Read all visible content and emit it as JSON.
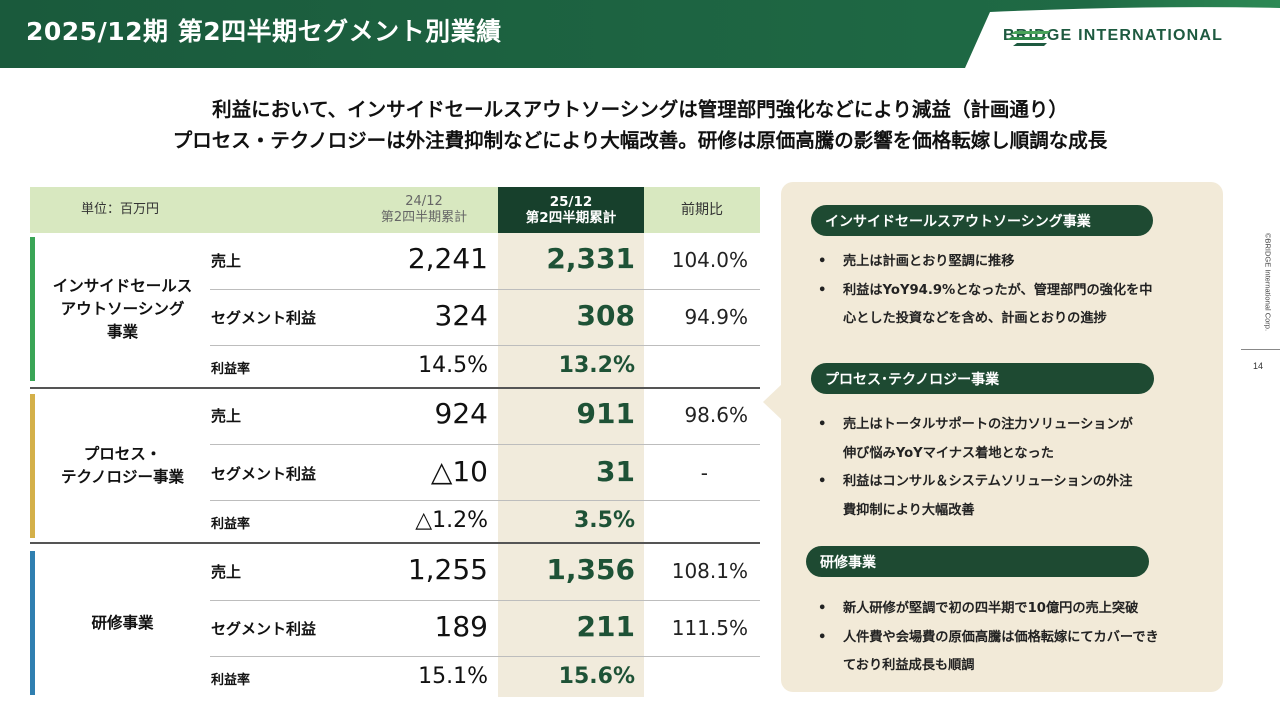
{
  "header": {
    "title": "2025/12期 第2四半期セグメント別業績",
    "logo_text": "BRIDGE INTERNATIONAL",
    "band_color": "#1b5a3e"
  },
  "headline": {
    "line1": "利益において、インサイドセールスアウトソーシングは管理部門強化などにより減益（計画通り）",
    "line2": "プロセス・テクノロジーは外注費抑制などにより大幅改善。研修は原価高騰の影響を価格転嫁し順調な成長"
  },
  "table": {
    "unit_label": "単位：百万円",
    "col_prev": {
      "line1": "24/12",
      "line2": "第2四半期累計"
    },
    "col_curr": {
      "line1": "25/12",
      "line2": "第2四半期累計"
    },
    "col_yoy": "前期比",
    "segments": [
      {
        "name_lines": [
          "インサイドセールス",
          "アウトソーシング",
          "事業"
        ],
        "color": "#3aa556",
        "rows": [
          {
            "label": "売上",
            "prev": "2,241",
            "curr": "2,331",
            "yoy": "104.0%"
          },
          {
            "label": "セグメント利益",
            "prev": "324",
            "curr": "308",
            "yoy": "94.9%"
          },
          {
            "label": "利益率",
            "prev": "14.5%",
            "curr": "13.2%",
            "yoy": ""
          }
        ]
      },
      {
        "name_lines": [
          "プロセス・",
          "テクノロジー事業"
        ],
        "color": "#d4b049",
        "rows": [
          {
            "label": "売上",
            "prev": "924",
            "curr": "911",
            "yoy": "98.6%"
          },
          {
            "label": "セグメント利益",
            "prev": "△10",
            "curr": "31",
            "yoy": "-"
          },
          {
            "label": "利益率",
            "prev": "△1.2%",
            "curr": "3.5%",
            "yoy": ""
          }
        ]
      },
      {
        "name_lines": [
          "研修事業"
        ],
        "color": "#2f7fb0",
        "rows": [
          {
            "label": "売上",
            "prev": "1,255",
            "curr": "1,356",
            "yoy": "108.1%"
          },
          {
            "label": "セグメント利益",
            "prev": "189",
            "curr": "211",
            "yoy": "111.5%"
          },
          {
            "label": "利益率",
            "prev": "15.1%",
            "curr": "15.6%",
            "yoy": ""
          }
        ]
      }
    ]
  },
  "panel": {
    "sections": [
      {
        "title": "インサイドセールスアウトソーシング事業",
        "bullets": [
          [
            "売上は計画とおり堅調に推移"
          ],
          [
            "利益はYoY94.9%となったが、管理部門の強化を中",
            "心とした投資などを含め、計画とおりの進捗"
          ]
        ]
      },
      {
        "title": "プロセス･テクノロジー事業",
        "bullets": [
          [
            "売上はトータルサポートの注力ソリューションが",
            "伸び悩みYoYマイナス着地となった"
          ],
          [
            "利益はコンサル＆システムソリューションの外注",
            "費抑制により大幅改善"
          ]
        ]
      },
      {
        "title": "研修事業",
        "bullets": [
          [
            "新人研修が堅調で初の四半期で10億円の売上突破"
          ],
          [
            "人件費や会場費の原価高騰は価格転嫁にてカバーでき",
            "ており利益成長も順調"
          ]
        ]
      }
    ],
    "bullet_char": "•"
  },
  "side": {
    "copyright": "©BRIDGE International Corp.",
    "page_number": "14"
  }
}
